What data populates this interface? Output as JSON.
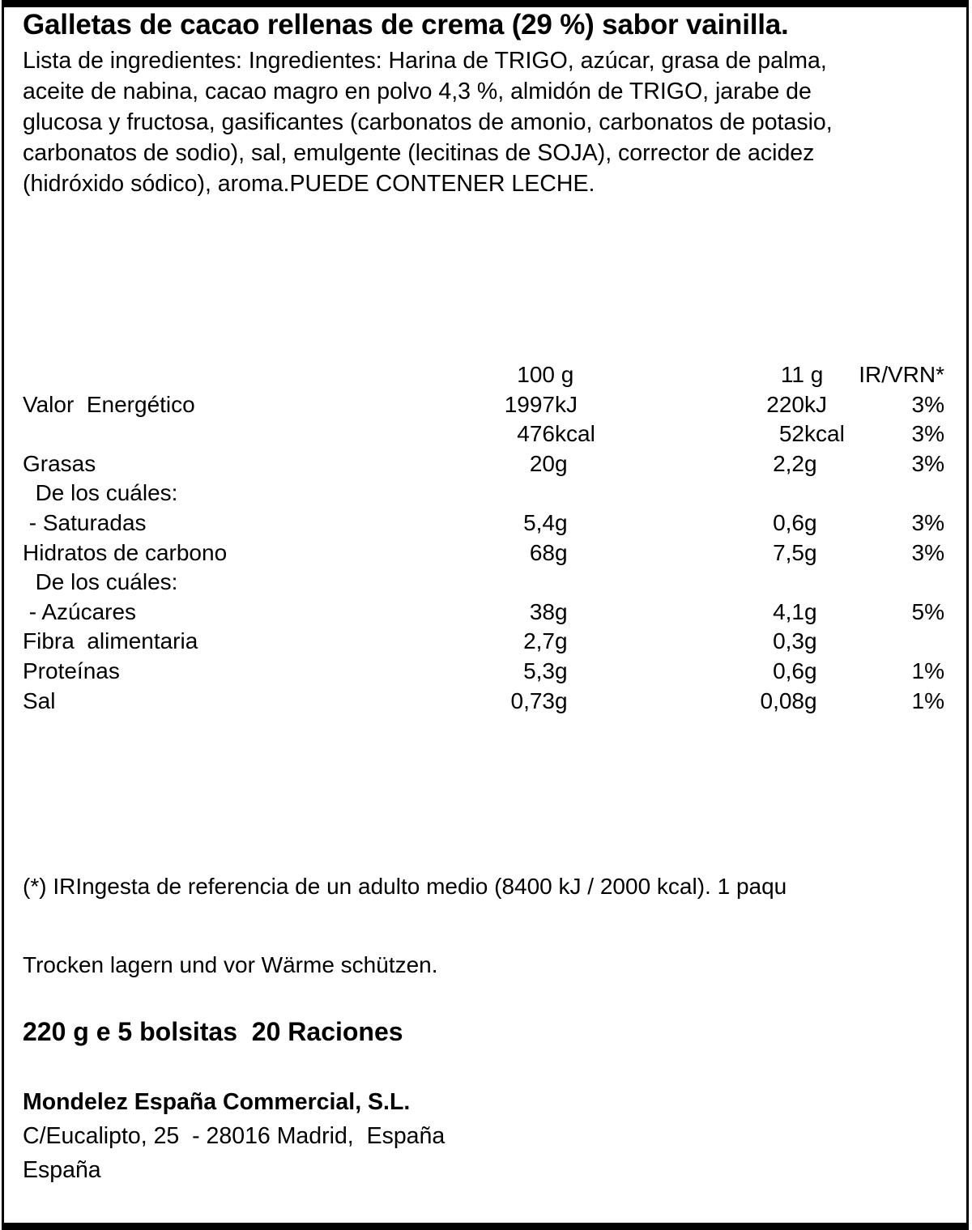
{
  "label": {
    "title": "Galletas de cacao rellenas de crema (29 %) sabor vainilla.",
    "ingredients_lines": [
      "Lista de ingredientes: Ingredientes: Harina de TRIGO, azúcar, grasa de palma,",
      "aceite de nabina, cacao magro en polvo 4,3 %, almidón de TRIGO, jarabe de",
      "glucosa y fructosa, gasificantes (carbonatos de amonio, carbonatos de potasio,",
      "carbonatos de sodio), sal, emulgente (lecitinas de SOJA), corrector de acidez",
      "(hidróxido sódico), aroma.PUEDE CONTENER LECHE."
    ],
    "nutrition": {
      "column_headers": [
        "",
        "100 g",
        "11 g",
        "IR/VRN*"
      ],
      "rows": [
        {
          "name": "",
          "per100_num": "100",
          "per100_unit": " g",
          "per11_num": "11",
          "per11_unit": " g",
          "irvrn": "IR/VRN*"
        },
        {
          "name": "Valor  Energético",
          "per100_num": "1997",
          "per100_unit": "kJ",
          "per11_num": "220",
          "per11_unit": "kJ",
          "irvrn": "3%"
        },
        {
          "name": "",
          "per100_num": "476",
          "per100_unit": "kcal",
          "per11_num": "52",
          "per11_unit": "kcal",
          "irvrn": "3%"
        },
        {
          "name": "Grasas",
          "per100_num": "20",
          "per100_unit": "g",
          "per11_num": "2,2",
          "per11_unit": "g",
          "irvrn": "3%"
        },
        {
          "name": "  De los cuáles:",
          "per100_num": "",
          "per100_unit": "",
          "per11_num": "",
          "per11_unit": "",
          "irvrn": ""
        },
        {
          "name": " - Saturadas",
          "per100_num": "5,4",
          "per100_unit": "g",
          "per11_num": "0,6",
          "per11_unit": "g",
          "irvrn": "3%"
        },
        {
          "name": "Hidratos de carbono",
          "per100_num": "68",
          "per100_unit": "g",
          "per11_num": "7,5",
          "per11_unit": "g",
          "irvrn": "3%"
        },
        {
          "name": "  De los cuáles:",
          "per100_num": "",
          "per100_unit": "",
          "per11_num": "",
          "per11_unit": "",
          "irvrn": ""
        },
        {
          "name": " - Azúcares",
          "per100_num": "38",
          "per100_unit": "g",
          "per11_num": "4,1",
          "per11_unit": "g",
          "irvrn": "5%"
        },
        {
          "name": "Fibra  alimentaria",
          "per100_num": "2,7",
          "per100_unit": "g",
          "per11_num": "0,3",
          "per11_unit": "g",
          "irvrn": ""
        },
        {
          "name": "Proteínas",
          "per100_num": "5,3",
          "per100_unit": "g",
          "per11_num": "0,6",
          "per11_unit": "g",
          "irvrn": "1%"
        },
        {
          "name": "Sal",
          "per100_num": "0,73",
          "per100_unit": "g",
          "per11_num": "0,08",
          "per11_unit": "g",
          "irvrn": "1%"
        }
      ]
    },
    "footnote": "(*) IRIngesta de referencia de un adulto medio (8400 kJ / 2000 kcal). 1 paqu",
    "storage": "Trocken lagern und vor Wärme schützen.",
    "pack_info": "220 g e 5 bolsitas  20 Raciones",
    "manufacturer": {
      "name": "Mondelez España Commercial, S.L.",
      "address": "C/Eucalipto, 25  - 28016 Madrid,  España",
      "country": "España"
    },
    "colors": {
      "text": "#000000",
      "background": "#ffffff",
      "frame": "#000000"
    }
  }
}
